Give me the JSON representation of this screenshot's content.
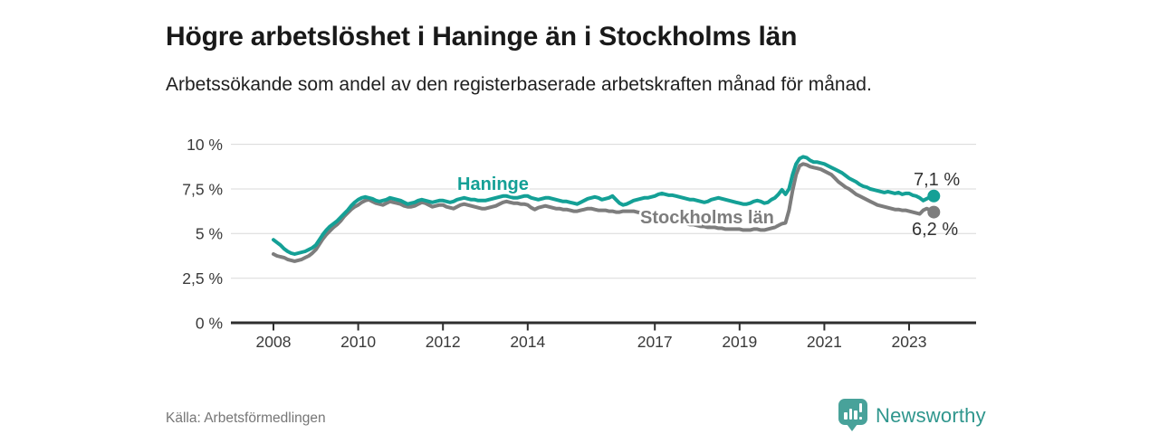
{
  "header": {
    "title": "Högre arbetslöshet i Haninge än i Stockholms län",
    "subtitle": "Arbetssökande som andel av den registerbaserade arbetskraften månad för månad."
  },
  "footer": {
    "source": "Källa: Arbetsförmedlingen",
    "brand_name": "Newsworthy"
  },
  "icons": {
    "brand_icon": "newsworthy-speech-bubble-bar-chart-icon"
  },
  "colors": {
    "haninge": "#14A096",
    "stockholm": "#7D7D7D",
    "grid": "#D9D9D9",
    "axis": "#2E2E2E",
    "tick_text": "#3A3A3A",
    "value_text": "#333333",
    "muted_text": "#767676",
    "brand": "#2F968D"
  },
  "chart_data": {
    "type": "line",
    "title": "Högre arbetslöshet i Haninge än i Stockholms län",
    "subtitle": "Arbetssökande som andel av den registerbaserade arbetskraften månad för månad.",
    "x_unit": "month",
    "x_start": "2008-01",
    "x_end": "2023-08",
    "ylabel": "%",
    "ylim": [
      0,
      10.5
    ],
    "grid": "horizontal",
    "legend_position": "inline-labels",
    "y_ticks": [
      {
        "value": 0,
        "label": "0 %"
      },
      {
        "value": 2.5,
        "label": "2,5 %"
      },
      {
        "value": 5,
        "label": "5 %"
      },
      {
        "value": 7.5,
        "label": "7,5 %"
      },
      {
        "value": 10,
        "label": "10 %"
      }
    ],
    "x_ticks": [
      {
        "value": 2008,
        "label": "2008"
      },
      {
        "value": 2010,
        "label": "2010"
      },
      {
        "value": 2012,
        "label": "2012"
      },
      {
        "value": 2014,
        "label": "2014"
      },
      {
        "value": 2017,
        "label": "2017"
      },
      {
        "value": 2019,
        "label": "2019"
      },
      {
        "value": 2021,
        "label": "2021"
      },
      {
        "value": 2023,
        "label": "2023"
      }
    ],
    "series": [
      {
        "name": "Haninge",
        "color": "#14A096",
        "end_label": "7,1 %",
        "end_value": 7.1,
        "values": [
          4.65,
          4.5,
          4.35,
          4.15,
          4.0,
          3.9,
          3.85,
          3.9,
          3.95,
          4.0,
          4.1,
          4.2,
          4.35,
          4.65,
          4.95,
          5.2,
          5.4,
          5.55,
          5.7,
          5.9,
          6.1,
          6.3,
          6.55,
          6.75,
          6.9,
          7.0,
          7.05,
          7.0,
          6.95,
          6.85,
          6.8,
          6.85,
          6.9,
          7.0,
          6.95,
          6.9,
          6.85,
          6.75,
          6.65,
          6.7,
          6.75,
          6.85,
          6.9,
          6.85,
          6.8,
          6.75,
          6.8,
          6.85,
          6.85,
          6.8,
          6.75,
          6.8,
          6.9,
          6.95,
          7.0,
          6.95,
          6.9,
          6.9,
          6.85,
          6.85,
          6.85,
          6.9,
          6.95,
          7.0,
          7.05,
          7.1,
          7.1,
          7.05,
          7.0,
          7.0,
          7.05,
          7.1,
          7.1,
          7.0,
          6.95,
          6.9,
          6.95,
          7.0,
          7.0,
          6.95,
          6.9,
          6.85,
          6.8,
          6.8,
          6.75,
          6.7,
          6.65,
          6.75,
          6.85,
          6.95,
          7.0,
          7.05,
          7.0,
          6.9,
          6.95,
          7.0,
          7.1,
          6.9,
          6.7,
          6.6,
          6.65,
          6.75,
          6.85,
          6.9,
          6.95,
          7.0,
          7.0,
          7.05,
          7.1,
          7.2,
          7.25,
          7.2,
          7.15,
          7.15,
          7.1,
          7.05,
          7.0,
          6.95,
          6.9,
          6.9,
          6.85,
          6.8,
          6.75,
          6.8,
          6.9,
          6.95,
          7.0,
          6.95,
          6.9,
          6.85,
          6.8,
          6.75,
          6.7,
          6.65,
          6.65,
          6.7,
          6.8,
          6.85,
          6.8,
          6.7,
          6.75,
          6.9,
          7.0,
          7.2,
          7.45,
          7.2,
          7.5,
          8.3,
          8.9,
          9.2,
          9.3,
          9.25,
          9.1,
          9.0,
          9.0,
          8.95,
          8.9,
          8.8,
          8.7,
          8.6,
          8.5,
          8.4,
          8.25,
          8.1,
          8.0,
          7.9,
          7.75,
          7.65,
          7.6,
          7.5,
          7.45,
          7.4,
          7.35,
          7.3,
          7.35,
          7.3,
          7.25,
          7.3,
          7.2,
          7.25,
          7.25,
          7.15,
          7.1,
          7.0,
          6.85,
          6.95,
          7.05,
          7.1
        ]
      },
      {
        "name": "Stockholms län",
        "color": "#7D7D7D",
        "end_label": "6,2 %",
        "end_value": 6.2,
        "values": [
          3.85,
          3.75,
          3.7,
          3.65,
          3.55,
          3.5,
          3.45,
          3.5,
          3.55,
          3.65,
          3.75,
          3.9,
          4.1,
          4.4,
          4.7,
          4.95,
          5.15,
          5.35,
          5.5,
          5.7,
          5.95,
          6.15,
          6.35,
          6.5,
          6.6,
          6.75,
          6.85,
          6.9,
          6.8,
          6.7,
          6.65,
          6.6,
          6.7,
          6.8,
          6.75,
          6.7,
          6.65,
          6.55,
          6.5,
          6.5,
          6.55,
          6.65,
          6.75,
          6.7,
          6.6,
          6.5,
          6.55,
          6.6,
          6.6,
          6.5,
          6.45,
          6.4,
          6.5,
          6.6,
          6.65,
          6.6,
          6.55,
          6.5,
          6.45,
          6.4,
          6.4,
          6.45,
          6.5,
          6.55,
          6.65,
          6.75,
          6.8,
          6.75,
          6.7,
          6.7,
          6.65,
          6.65,
          6.6,
          6.45,
          6.35,
          6.45,
          6.5,
          6.55,
          6.5,
          6.45,
          6.4,
          6.4,
          6.35,
          6.35,
          6.3,
          6.25,
          6.25,
          6.3,
          6.35,
          6.4,
          6.4,
          6.35,
          6.3,
          6.3,
          6.3,
          6.25,
          6.25,
          6.2,
          6.2,
          6.25,
          6.25,
          6.25,
          6.25,
          6.2,
          6.15,
          6.1,
          6.05,
          6.0,
          5.95,
          5.9,
          5.85,
          5.8,
          5.75,
          5.75,
          5.7,
          5.65,
          5.6,
          5.55,
          5.5,
          5.5,
          5.45,
          5.4,
          5.4,
          5.35,
          5.35,
          5.35,
          5.3,
          5.3,
          5.25,
          5.25,
          5.25,
          5.25,
          5.25,
          5.2,
          5.2,
          5.2,
          5.25,
          5.25,
          5.2,
          5.2,
          5.25,
          5.3,
          5.35,
          5.45,
          5.55,
          5.6,
          6.3,
          7.4,
          8.3,
          8.8,
          8.9,
          8.85,
          8.75,
          8.7,
          8.65,
          8.6,
          8.5,
          8.4,
          8.3,
          8.1,
          7.9,
          7.75,
          7.6,
          7.5,
          7.35,
          7.2,
          7.1,
          7.0,
          6.9,
          6.8,
          6.7,
          6.6,
          6.55,
          6.5,
          6.45,
          6.4,
          6.35,
          6.35,
          6.3,
          6.3,
          6.25,
          6.2,
          6.15,
          6.1,
          6.3,
          6.4,
          6.3,
          6.2
        ]
      }
    ]
  }
}
